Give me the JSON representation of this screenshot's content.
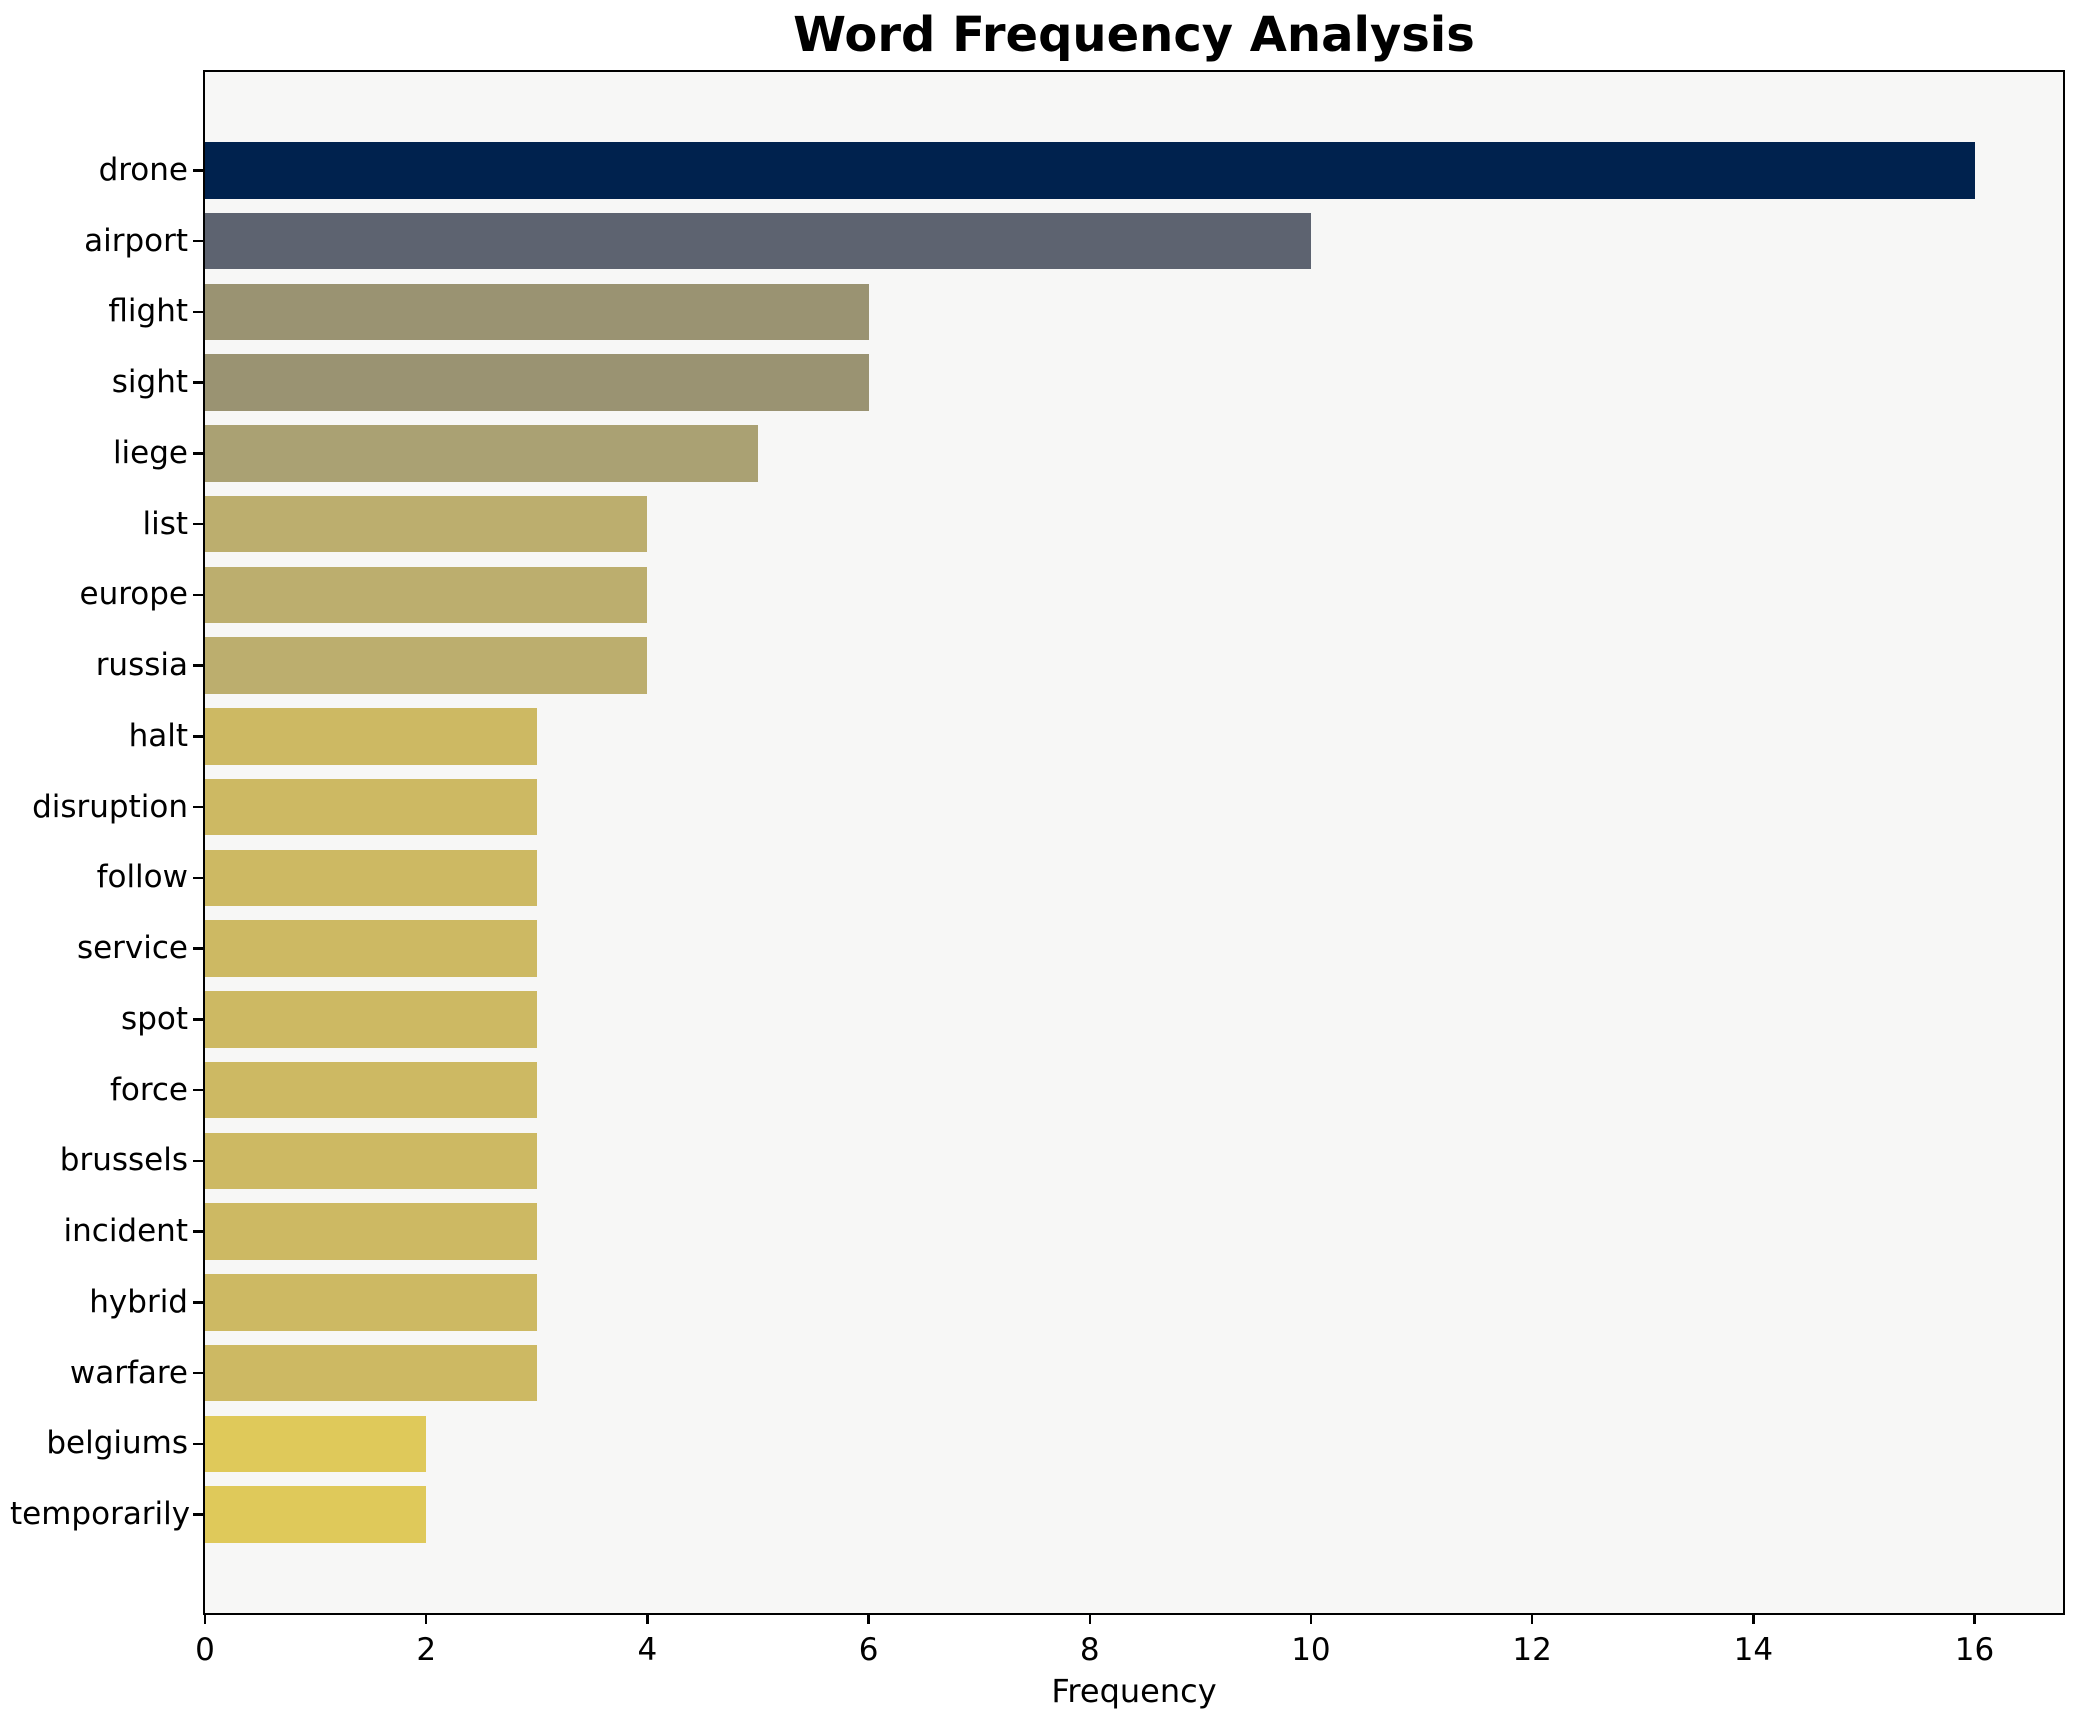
{
  "chart_data": {
    "type": "bar",
    "orientation": "horizontal",
    "title": "Word Frequency Analysis",
    "xlabel": "Frequency",
    "ylabel": "",
    "grid": false,
    "legend": null,
    "xlim": [
      0,
      16.8
    ],
    "x_ticks": [
      "0",
      "2",
      "4",
      "6",
      "8",
      "10",
      "12",
      "14",
      "16"
    ],
    "x_tick_values": [
      0,
      2,
      4,
      6,
      8,
      10,
      12,
      14,
      16
    ],
    "categories": [
      "drone",
      "airport",
      "flight",
      "sight",
      "liege",
      "list",
      "europe",
      "russia",
      "halt",
      "disruption",
      "follow",
      "service",
      "spot",
      "force",
      "brussels",
      "incident",
      "hybrid",
      "warfare",
      "belgiums",
      "temporarily"
    ],
    "values": [
      16,
      10,
      6,
      6,
      5,
      4,
      4,
      4,
      3,
      3,
      3,
      3,
      3,
      3,
      3,
      3,
      3,
      3,
      2,
      2
    ],
    "bar_colors": [
      "#00224e",
      "#5d6370",
      "#9a9372",
      "#9a9372",
      "#aaa173",
      "#bcae6e",
      "#bcae6e",
      "#bcae6e",
      "#cdb963",
      "#cdb963",
      "#cdb963",
      "#cdb963",
      "#cdb963",
      "#cdb963",
      "#cdb963",
      "#cdb963",
      "#cdb963",
      "#cdb963",
      "#dfc95a",
      "#dfc95a"
    ],
    "colors": {
      "figure_bg": "#ffffff",
      "plot_bg": "#f7f7f6",
      "spine": "#000000",
      "text": "#000000"
    }
  }
}
